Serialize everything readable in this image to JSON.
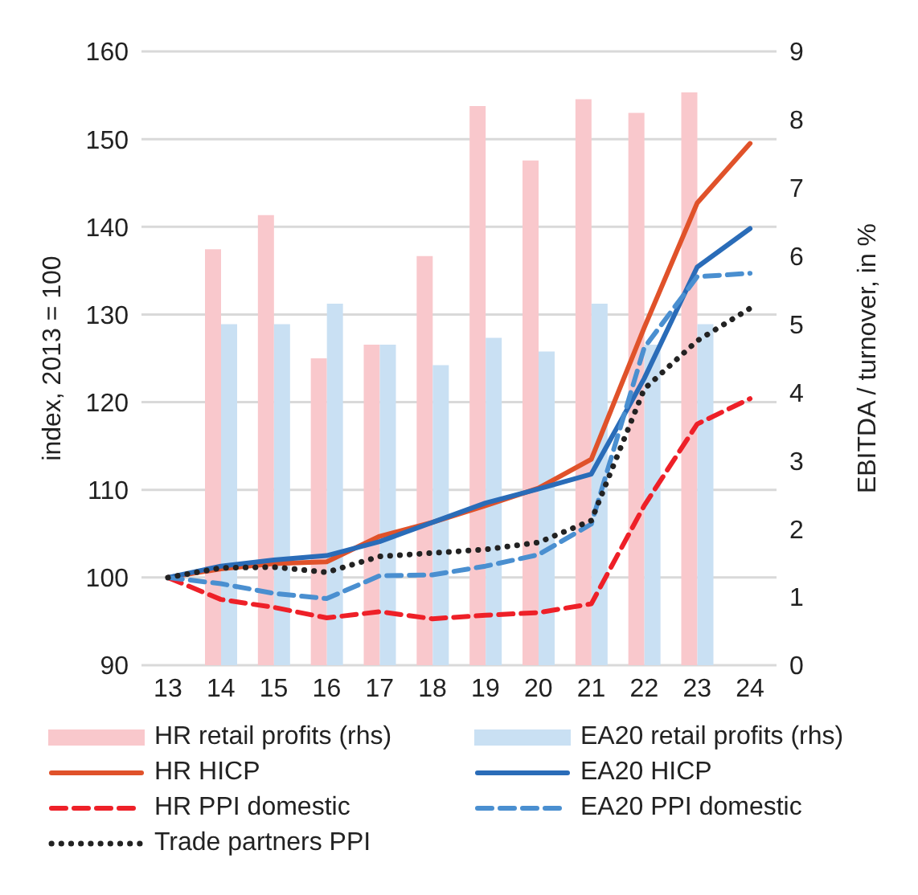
{
  "chart_data": {
    "type": "bar",
    "categories": [
      "13",
      "14",
      "15",
      "16",
      "17",
      "18",
      "19",
      "20",
      "21",
      "22",
      "23",
      "24"
    ],
    "ylabel": "index, 2013 = 100",
    "y2label": "EBITDA / turnover, in %",
    "ylim": [
      90,
      160
    ],
    "yticks": [
      90,
      100,
      110,
      120,
      130,
      140,
      150,
      160
    ],
    "y2lim": [
      0,
      9
    ],
    "y2ticks": [
      0,
      1,
      2,
      3,
      4,
      5,
      6,
      7,
      8,
      9
    ],
    "grid": "y",
    "legend": "bottom",
    "marker": "none",
    "series": [
      {
        "name": "HR retail profits (rhs)",
        "axis": "y2",
        "color": "#f9c8cc",
        "values": [
          null,
          6.1,
          6.6,
          4.5,
          4.7,
          6.0,
          8.2,
          7.4,
          8.3,
          8.1,
          8.4,
          null
        ]
      },
      {
        "name": "EA20 retail profits (rhs)",
        "axis": "y2",
        "color": "#c9e0f3",
        "values": [
          null,
          5.0,
          5.0,
          5.3,
          4.7,
          4.4,
          4.8,
          4.6,
          5.3,
          4.7,
          5.0,
          null
        ]
      },
      {
        "name": "HR HICP",
        "type": "line",
        "line_style": "solid",
        "color": "#e0522a",
        "values": [
          100,
          101.0,
          101.6,
          101.8,
          104.7,
          106.3,
          108.2,
          110.2,
          113.5,
          128.5,
          142.7,
          149.5
        ]
      },
      {
        "name": "EA20 HICP",
        "type": "line",
        "line_style": "solid",
        "color": "#2a6cb8",
        "values": [
          100,
          101.3,
          102.0,
          102.5,
          104.1,
          106.3,
          108.5,
          110.1,
          111.8,
          122.7,
          135.4,
          139.8
        ]
      },
      {
        "name": "HR PPI domestic",
        "type": "line",
        "line_style": "dashed",
        "color": "#ee2028",
        "values": [
          100,
          97.5,
          96.6,
          95.4,
          96.1,
          95.3,
          95.7,
          96.0,
          97.0,
          108.2,
          117.5,
          120.4
        ]
      },
      {
        "name": "EA20 PPI domestic",
        "type": "line",
        "line_style": "dashed",
        "color": "#4a8fd0",
        "values": [
          100,
          99.3,
          98.2,
          97.6,
          100.2,
          100.3,
          101.3,
          102.6,
          106.1,
          126.2,
          134.3,
          134.7
        ]
      },
      {
        "name": "Trade partners PPI",
        "type": "line",
        "line_style": "dotted",
        "color": "#222222",
        "values": [
          100,
          101.1,
          101.2,
          100.6,
          102.4,
          102.8,
          103.2,
          104.0,
          106.5,
          121.5,
          127.0,
          130.7
        ]
      }
    ]
  }
}
